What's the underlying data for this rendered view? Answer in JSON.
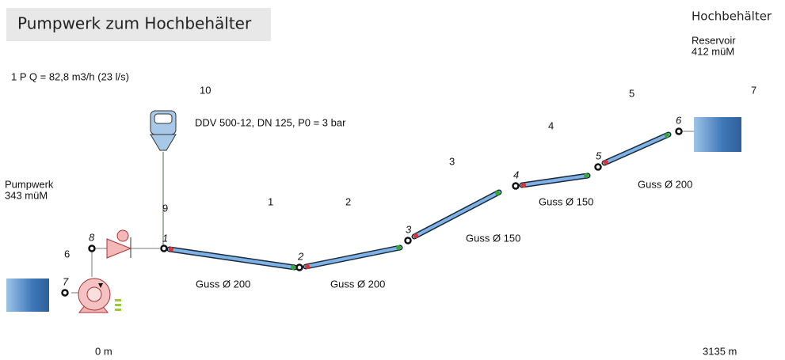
{
  "title": "Pumpwerk zum Hochbehälter",
  "reservoir": {
    "name": "Hochbehälter",
    "type": "Reservoir",
    "elevation": "412 müM"
  },
  "pump": {
    "flow": "1 P Q = 82,8 m3/h (23 l/s)"
  },
  "pressure_vessel": {
    "id": "10",
    "label": "DDV 500-12, DN 125, P0 = 3 bar"
  },
  "pumpstation": {
    "name": "Pumpwerk",
    "elevation": "343 müM"
  },
  "nodes": [
    "1",
    "2",
    "3",
    "4",
    "5",
    "6",
    "7",
    "8"
  ],
  "pipes": [
    {
      "id": "1",
      "material": "Guss Ø 200"
    },
    {
      "id": "2",
      "material": "Guss Ø 200"
    },
    {
      "id": "3",
      "material": "Guss Ø 150"
    },
    {
      "id": "4",
      "material": "Guss Ø 150"
    },
    {
      "id": "5",
      "material": "Guss Ø 200"
    }
  ],
  "links": [
    "9",
    "6",
    "7"
  ],
  "distance": {
    "start": "0 m",
    "end": "3135 m"
  }
}
